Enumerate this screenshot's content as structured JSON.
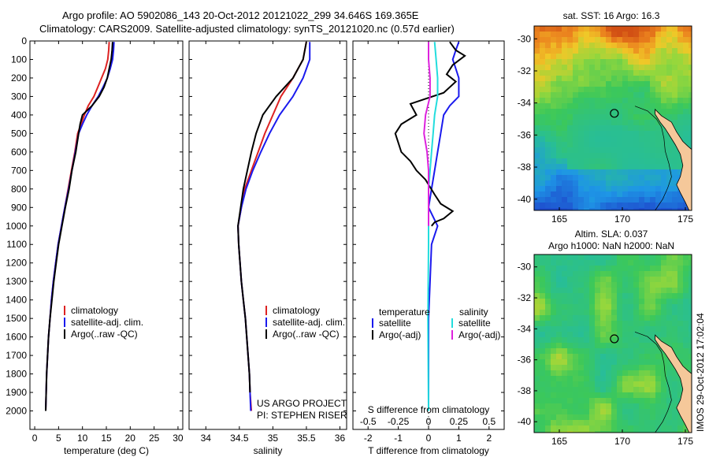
{
  "header": {
    "line1": "Argo profile: AO 5902086_143 20-Oct-2012 20121022_299 34.646S 169.365E",
    "line2": "Climatology: CARS2009. Satellite-adjusted climatology: synTS_20121020.nc (0.57d earlier)"
  },
  "colors": {
    "climatology": "#dd2222",
    "satellite": "#1a1aee",
    "argo": "#000000",
    "sal_sat": "#22dddd",
    "sal_argo": "#dd22dd",
    "land": "#f5c89a"
  },
  "credit": {
    "project": "US ARGO PROJECT",
    "pi": "PI: STEPHEN RISER"
  },
  "watermark": "IMOS 29-Oct-2012 17:02:04",
  "chart_data": [
    {
      "id": "temperature",
      "type": "line",
      "xlabel": "temperature (deg C)",
      "ylabel": "",
      "xlim": [
        -1,
        31
      ],
      "ylim": [
        0,
        2100
      ],
      "xticks": [
        0,
        5,
        10,
        15,
        20,
        25,
        30
      ],
      "yticks": [
        0,
        100,
        200,
        300,
        400,
        500,
        600,
        700,
        800,
        900,
        1000,
        1100,
        1200,
        1300,
        1400,
        1500,
        1600,
        1700,
        1800,
        1900,
        2000
      ],
      "legend": [
        "climatology",
        "satellite-adj. clim.",
        "Argo(..raw -QC)"
      ],
      "series": [
        {
          "name": "climatology",
          "color": "#dd2222",
          "points": [
            [
              15.6,
              5
            ],
            [
              15.5,
              50
            ],
            [
              15.3,
              100
            ],
            [
              14.8,
              150
            ],
            [
              14.0,
              200
            ],
            [
              13.2,
              250
            ],
            [
              12.4,
              300
            ],
            [
              11.2,
              350
            ],
            [
              10.4,
              400
            ],
            [
              9.7,
              450
            ],
            [
              9.0,
              500
            ],
            [
              8.4,
              600
            ],
            [
              7.7,
              700
            ],
            [
              7.0,
              800
            ],
            [
              6.3,
              900
            ],
            [
              5.6,
              1000
            ],
            [
              4.9,
              1100
            ],
            [
              4.4,
              1200
            ],
            [
              3.9,
              1300
            ],
            [
              3.5,
              1400
            ],
            [
              3.2,
              1500
            ],
            [
              2.9,
              1600
            ],
            [
              2.7,
              1700
            ],
            [
              2.5,
              1800
            ],
            [
              2.4,
              1900
            ],
            [
              2.3,
              2000
            ]
          ]
        },
        {
          "name": "satellite-adj. clim.",
          "color": "#1a1aee",
          "points": [
            [
              16.6,
              5
            ],
            [
              16.5,
              50
            ],
            [
              16.3,
              100
            ],
            [
              15.8,
              150
            ],
            [
              15.2,
              200
            ],
            [
              14.3,
              250
            ],
            [
              13.3,
              300
            ],
            [
              12.0,
              350
            ],
            [
              10.9,
              400
            ],
            [
              10.0,
              450
            ],
            [
              9.2,
              500
            ],
            [
              8.5,
              600
            ],
            [
              7.8,
              700
            ],
            [
              7.1,
              800
            ],
            [
              6.3,
              900
            ],
            [
              5.6,
              1000
            ],
            [
              4.9,
              1100
            ],
            [
              4.4,
              1200
            ],
            [
              3.9,
              1300
            ],
            [
              3.5,
              1400
            ],
            [
              3.2,
              1500
            ],
            [
              2.9,
              1600
            ],
            [
              2.7,
              1700
            ],
            [
              2.5,
              1800
            ],
            [
              2.4,
              1900
            ],
            [
              2.3,
              2000
            ]
          ]
        },
        {
          "name": "Argo(..raw -QC)",
          "color": "#000000",
          "points": [
            [
              16.3,
              5
            ],
            [
              16.2,
              50
            ],
            [
              16.0,
              100
            ],
            [
              15.6,
              150
            ],
            [
              15.2,
              200
            ],
            [
              14.5,
              250
            ],
            [
              13.5,
              300
            ],
            [
              12.0,
              350
            ],
            [
              10.0,
              400
            ],
            [
              9.5,
              450
            ],
            [
              9.2,
              500
            ],
            [
              8.6,
              600
            ],
            [
              7.8,
              700
            ],
            [
              7.2,
              800
            ],
            [
              6.4,
              900
            ],
            [
              5.7,
              1000
            ],
            [
              5.0,
              1100
            ],
            [
              4.5,
              1200
            ],
            [
              4.0,
              1300
            ],
            [
              3.6,
              1400
            ],
            [
              3.2,
              1500
            ],
            [
              2.9,
              1600
            ],
            [
              2.7,
              1700
            ],
            [
              2.5,
              1800
            ],
            [
              2.4,
              1900
            ],
            [
              2.3,
              2000
            ]
          ]
        }
      ]
    },
    {
      "id": "salinity",
      "type": "line",
      "xlabel": "salinity",
      "xlim": [
        33.75,
        36.1
      ],
      "ylim": [
        0,
        2100
      ],
      "xticks": [
        34,
        34.5,
        35,
        35.5,
        36
      ],
      "legend": [
        "climatology",
        "satellite-adj. clim.",
        "Argo(..raw -QC)"
      ],
      "series": [
        {
          "name": "climatology",
          "color": "#dd2222",
          "points": [
            [
              35.5,
              5
            ],
            [
              35.45,
              100
            ],
            [
              35.3,
              200
            ],
            [
              35.12,
              300
            ],
            [
              35.0,
              400
            ],
            [
              34.88,
              500
            ],
            [
              34.78,
              600
            ],
            [
              34.68,
              700
            ],
            [
              34.58,
              800
            ],
            [
              34.53,
              900
            ],
            [
              34.48,
              1000
            ],
            [
              34.49,
              1100
            ],
            [
              34.51,
              1200
            ],
            [
              34.53,
              1300
            ],
            [
              34.56,
              1400
            ],
            [
              34.59,
              1500
            ],
            [
              34.61,
              1600
            ],
            [
              34.63,
              1700
            ],
            [
              34.65,
              1800
            ],
            [
              34.66,
              1900
            ],
            [
              34.68,
              2000
            ]
          ]
        },
        {
          "name": "satellite-adj. clim.",
          "color": "#1a1aee",
          "points": [
            [
              35.55,
              5
            ],
            [
              35.55,
              100
            ],
            [
              35.45,
              200
            ],
            [
              35.3,
              300
            ],
            [
              35.1,
              400
            ],
            [
              34.95,
              500
            ],
            [
              34.82,
              600
            ],
            [
              34.7,
              700
            ],
            [
              34.6,
              800
            ],
            [
              34.53,
              900
            ],
            [
              34.48,
              1000
            ],
            [
              34.49,
              1100
            ],
            [
              34.51,
              1200
            ],
            [
              34.53,
              1300
            ],
            [
              34.56,
              1400
            ],
            [
              34.59,
              1500
            ],
            [
              34.61,
              1600
            ],
            [
              34.63,
              1700
            ],
            [
              34.65,
              1800
            ],
            [
              34.66,
              1900
            ],
            [
              34.67,
              2000
            ]
          ]
        },
        {
          "name": "Argo(..raw -QC)",
          "color": "#000000",
          "points": [
            [
              35.5,
              5
            ],
            [
              35.45,
              100
            ],
            [
              35.3,
              200
            ],
            [
              35.05,
              300
            ],
            [
              34.85,
              400
            ],
            [
              34.75,
              500
            ],
            [
              34.68,
              600
            ],
            [
              34.62,
              700
            ],
            [
              34.56,
              800
            ],
            [
              34.52,
              900
            ],
            [
              34.48,
              1000
            ],
            [
              34.49,
              1100
            ],
            [
              34.51,
              1200
            ],
            [
              34.53,
              1300
            ],
            [
              34.56,
              1400
            ],
            [
              34.59,
              1500
            ],
            [
              34.61,
              1600
            ],
            [
              34.63,
              1700
            ],
            [
              34.65,
              1800
            ],
            [
              34.66,
              1900
            ]
          ]
        }
      ]
    },
    {
      "id": "difference",
      "type": "line",
      "xlabel": "T difference from climatology",
      "xlabel_top": "S difference from climatology",
      "xlim": [
        -2.5,
        2.5
      ],
      "ylim": [
        0,
        2100
      ],
      "xticks": [
        -2,
        -1,
        0,
        1,
        2
      ],
      "top_ticks": [
        "-0.5",
        "-0.25",
        "0",
        "0.25",
        "0.5"
      ],
      "legend_left_title": "temperature",
      "legend_right_title": "salinity",
      "legend_left": [
        "satellite",
        "Argo(-adj)"
      ],
      "legend_right": [
        "satellite",
        "Argo(-adj)"
      ],
      "series": [
        {
          "name": "T satellite",
          "color": "#1a1aee",
          "points": [
            [
              1.0,
              5
            ],
            [
              0.9,
              50
            ],
            [
              0.8,
              100
            ],
            [
              0.9,
              150
            ],
            [
              1.0,
              200
            ],
            [
              1.0,
              250
            ],
            [
              1.0,
              300
            ],
            [
              0.7,
              350
            ],
            [
              0.5,
              400
            ],
            [
              0.4,
              500
            ],
            [
              0.3,
              600
            ],
            [
              0.2,
              700
            ],
            [
              0.1,
              800
            ],
            [
              0.0,
              900
            ],
            [
              0.3,
              1000
            ],
            [
              0.1,
              1100
            ],
            [
              0.05,
              1300
            ],
            [
              0.0,
              1500
            ],
            [
              0.0,
              2000
            ]
          ]
        },
        {
          "name": "T Argo(-adj)",
          "color": "#000000",
          "points": [
            [
              0.7,
              5
            ],
            [
              0.9,
              50
            ],
            [
              1.2,
              80
            ],
            [
              0.8,
              130
            ],
            [
              0.6,
              180
            ],
            [
              0.9,
              220
            ],
            [
              0.5,
              280
            ],
            [
              -0.6,
              340
            ],
            [
              -0.4,
              400
            ],
            [
              -0.9,
              450
            ],
            [
              -1.1,
              500
            ],
            [
              -0.9,
              600
            ],
            [
              -0.6,
              650
            ],
            [
              -0.4,
              700
            ],
            [
              -0.1,
              750
            ],
            [
              0.2,
              830
            ],
            [
              0.4,
              880
            ],
            [
              0.8,
              920
            ],
            [
              0.5,
              960
            ],
            [
              0.2,
              980
            ],
            [
              0.1,
              1000
            ]
          ]
        },
        {
          "name": "S satellite",
          "color": "#22dddd",
          "points": [
            [
              0.2,
              5
            ],
            [
              0.25,
              100
            ],
            [
              0.3,
              200
            ],
            [
              0.3,
              300
            ],
            [
              0.2,
              400
            ],
            [
              0.15,
              500
            ],
            [
              0.1,
              600
            ],
            [
              0.05,
              700
            ],
            [
              0.0,
              800
            ],
            [
              0.0,
              900
            ],
            [
              0.0,
              1000
            ],
            [
              0.0,
              1100
            ],
            [
              -0.02,
              1500
            ],
            [
              0.0,
              2000
            ]
          ]
        },
        {
          "name": "S Argo(-adj)",
          "color": "#dd22dd",
          "points": [
            [
              0.0,
              5
            ],
            [
              0.0,
              100
            ],
            [
              0.05,
              200
            ],
            [
              0.05,
              300
            ],
            [
              -0.1,
              400
            ],
            [
              -0.15,
              500
            ],
            [
              -0.05,
              600
            ],
            [
              0.0,
              700
            ],
            [
              0.0,
              800
            ],
            [
              0.0,
              900
            ],
            [
              0.0,
              1000
            ]
          ]
        }
      ]
    },
    {
      "id": "sst_map",
      "type": "heatmap",
      "title": "sat. SST: 16 Argo: 16.3",
      "xticks": [
        165,
        170,
        175
      ],
      "yticks": [
        -30,
        -32,
        -34,
        -36,
        -38,
        -40
      ],
      "xlim": [
        163,
        175.5
      ],
      "ylim": [
        -40.7,
        -29.2
      ],
      "argo_position": [
        169.365,
        -34.646
      ]
    },
    {
      "id": "sla_map",
      "type": "heatmap",
      "title": "Altim. SLA: 0.037",
      "subtitle": "Argo h1000: NaN h2000: NaN",
      "xticks": [
        165,
        170,
        175
      ],
      "yticks": [
        -30,
        -32,
        -34,
        -36,
        -38,
        -40
      ],
      "xlim": [
        163,
        175.5
      ],
      "ylim": [
        -40.7,
        -29.2
      ],
      "argo_position": [
        169.365,
        -34.646
      ]
    }
  ]
}
